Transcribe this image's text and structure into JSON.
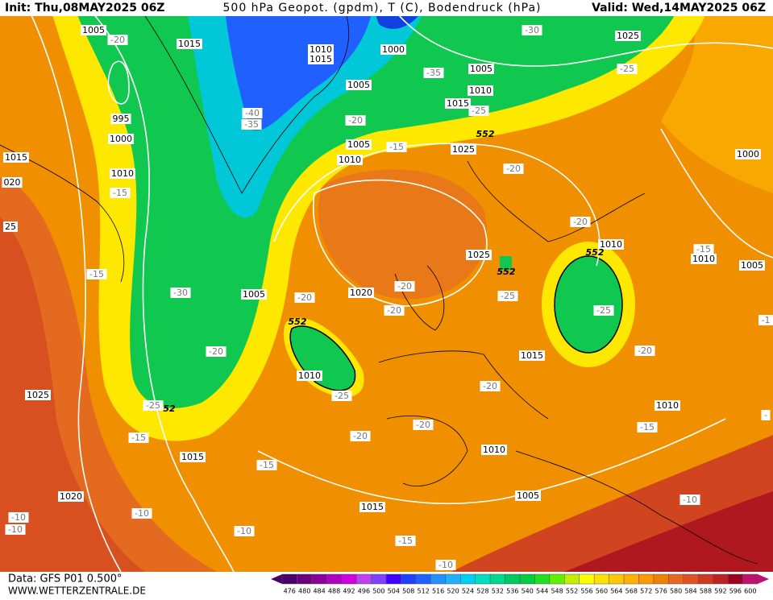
{
  "header": {
    "init": "Init: Thu,08MAY2025 06Z",
    "title": "500 hPa Geopot. (gpdm), T (C), Bodendruck (hPa)",
    "valid": "Valid: Wed,14MAY2025 06Z"
  },
  "footer": {
    "data": "Data: GFS P01 0.500°",
    "site": "WWW.WETTERZENTRALE.DE"
  },
  "map": {
    "pressure_labels": [
      "1005",
      "1015",
      "1010",
      "1015",
      "1000",
      "1005",
      "1025",
      "1010",
      "1015",
      "1005",
      "995",
      "1000",
      "1015",
      "1005",
      "1010",
      "1025",
      "1000",
      "1010",
      "020",
      "25",
      "1025",
      "1010",
      "1010",
      "1005",
      "1005",
      "1020",
      "1015",
      "1010",
      "1025",
      "1010",
      "1010",
      "1015",
      "1020",
      "1005",
      "1015"
    ],
    "temperature_labels": [
      "-20",
      "-30",
      "-35",
      "-25",
      "-40",
      "-35",
      "-20",
      "-25",
      "-15",
      "-20",
      "-15",
      "-20",
      "-15",
      "-15",
      "-20",
      "-25",
      "-30",
      "-20",
      "-20",
      "-25",
      "-20",
      "-20",
      "-20",
      "-25",
      "-25",
      "-20",
      "-20",
      "-15",
      "-15",
      "-15",
      "-10",
      "-10",
      "-10",
      "-10",
      "-10",
      "-15",
      "-10",
      "-1",
      "-"
    ],
    "contour_552_labels": [
      "552",
      "552",
      "552",
      "552",
      "52"
    ]
  },
  "colorbar": {
    "ticks": [
      476,
      480,
      484,
      488,
      492,
      496,
      500,
      504,
      508,
      512,
      516,
      520,
      524,
      528,
      532,
      536,
      540,
      544,
      548,
      552,
      556,
      560,
      564,
      568,
      572,
      576,
      580,
      584,
      588,
      592,
      596,
      600
    ],
    "colors": [
      "#4b0068",
      "#6a007f",
      "#8a0099",
      "#b000c0",
      "#d000e0",
      "#c040f0",
      "#8040ff",
      "#4000ff",
      "#2040ff",
      "#2060ff",
      "#2090ff",
      "#20b0ff",
      "#00d0f0",
      "#00e0c0",
      "#00d890",
      "#00c860",
      "#00d040",
      "#20e020",
      "#60f000",
      "#c0f000",
      "#ffff00",
      "#ffe000",
      "#ffc800",
      "#ffb000",
      "#ff9800",
      "#f08000",
      "#e86820",
      "#e05020",
      "#d03820",
      "#c02020",
      "#a00020",
      "#c01070"
    ]
  }
}
